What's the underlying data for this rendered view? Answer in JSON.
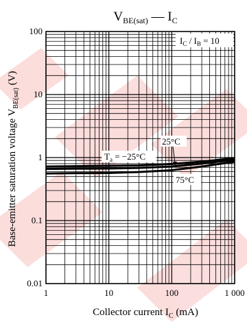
{
  "chart_data": {
    "type": "line",
    "title": {
      "main": "V",
      "sub": "BE(sat)",
      "dash": " — I",
      "tail": "C"
    },
    "xlabel": {
      "main": "Collector current  I",
      "sub": "C",
      "tail": "  (mA)"
    },
    "ylabel": {
      "main": "Base-emitter saturation voltage  V",
      "sub": "BE(sat)",
      "tail": "  (V)"
    },
    "x_scale": "log",
    "y_scale": "log",
    "xlim": [
      1,
      1000
    ],
    "ylim": [
      0.01,
      100
    ],
    "x_ticks": [
      "1",
      "10",
      "100",
      "1 000"
    ],
    "y_ticks": [
      "0.01",
      "0.1",
      "1",
      "10",
      "100"
    ],
    "grid": true,
    "condition": {
      "main": "I",
      "sub1": "C",
      "mid": " / I",
      "sub2": "B",
      "tail": " = 10"
    },
    "series": [
      {
        "name": "T_a = −25°C",
        "label_main": "T",
        "label_sub": "a",
        "label_tail": " = −25°C",
        "x": [
          1,
          3,
          10,
          30,
          100,
          300,
          1000
        ],
        "y": [
          0.72,
          0.73,
          0.74,
          0.75,
          0.79,
          0.86,
          0.98
        ]
      },
      {
        "name": "25°C",
        "label_main": "25°C",
        "label_sub": "",
        "label_tail": "",
        "x": [
          1,
          3,
          10,
          30,
          100,
          300,
          1000
        ],
        "y": [
          0.66,
          0.665,
          0.67,
          0.685,
          0.72,
          0.8,
          0.92
        ]
      },
      {
        "name": "75°C",
        "label_main": "75°C",
        "label_sub": "",
        "label_tail": "",
        "x": [
          1,
          3,
          10,
          30,
          100,
          300,
          1000
        ],
        "y": [
          0.56,
          0.565,
          0.57,
          0.59,
          0.63,
          0.72,
          0.86
        ]
      }
    ],
    "colors": {
      "line": "#000000",
      "grid": "#000000",
      "watermark": "#e8302f"
    }
  }
}
